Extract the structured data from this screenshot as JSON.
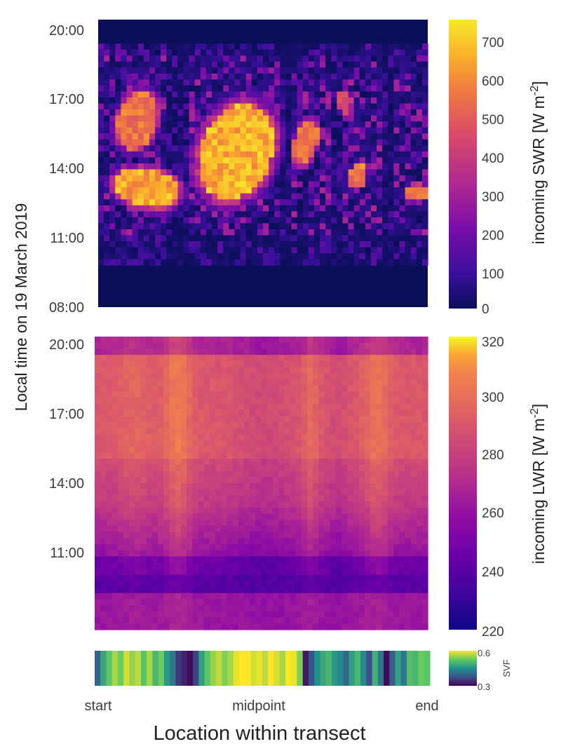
{
  "chart_data": [
    {
      "type": "heatmap",
      "xlabel": "Location within transect",
      "ylabel": "Local time on 19 March 2019",
      "x_tick_labels": [
        "start",
        "midpoint",
        "end"
      ],
      "y_tick_labels": [
        "20:00",
        "17:00",
        "14:00",
        "11:00",
        "08:00"
      ],
      "ylim": [
        "08:00",
        "20:00"
      ],
      "colorbar": {
        "label": "incoming SWR [W m",
        "label_superscript": "-2",
        "label_suffix": "]",
        "range": [
          0,
          750
        ],
        "ticks": [
          0,
          100,
          200,
          300,
          400,
          500,
          600,
          700
        ],
        "tick_labels": [
          "0",
          "100",
          "200",
          "300",
          "400",
          "500",
          "600",
          "700"
        ],
        "colormap": "plasma"
      },
      "zero_periods": [
        "08:00-10:00",
        "19:00-20:00"
      ],
      "bright_patches_w_m2": [
        {
          "location": "start",
          "time": "12:00-13:30",
          "value": 720
        },
        {
          "location": "start",
          "time": "15:00-17:00",
          "value": 650
        },
        {
          "location": "midpoint",
          "time": "12:30-17:00",
          "value": 740
        },
        {
          "location": "right of midpoint",
          "time": "14:00-16:00",
          "value": 650
        },
        {
          "location": "end",
          "time": "12:30-13:30",
          "value": 680
        }
      ]
    },
    {
      "type": "heatmap",
      "xlabel": "Location within transect",
      "ylabel": "Local time on 19 March 2019",
      "y_tick_labels": [
        "20:00",
        "17:00",
        "14:00",
        "11:00"
      ],
      "colorbar": {
        "label": "incoming LWR [W m",
        "label_superscript": "-2",
        "label_suffix": "]",
        "range": [
          220,
          320
        ],
        "ticks": [
          220,
          240,
          260,
          280,
          300,
          320
        ],
        "tick_labels": [
          "220",
          "240",
          "260",
          "280",
          "300",
          "320"
        ],
        "colormap": "plasma"
      },
      "typical_values_w_m2": {
        "afternoon_max": 305,
        "morning_min": 240
      }
    },
    {
      "type": "heatmap",
      "colorbar": {
        "label": "SVF",
        "range": [
          0.3,
          0.6
        ],
        "ticks": [
          0.3,
          0.6
        ],
        "tick_labels": [
          "0.3",
          "0.6"
        ],
        "colormap": "viridis"
      },
      "svf_values": [
        0.4,
        0.48,
        0.52,
        0.56,
        0.53,
        0.58,
        0.55,
        0.57,
        0.52,
        0.56,
        0.5,
        0.53,
        0.46,
        0.42,
        0.35,
        0.33,
        0.31,
        0.36,
        0.47,
        0.52,
        0.55,
        0.57,
        0.54,
        0.56,
        0.59,
        0.6,
        0.6,
        0.58,
        0.59,
        0.57,
        0.6,
        0.58,
        0.56,
        0.6,
        0.59,
        0.54,
        0.32,
        0.38,
        0.45,
        0.48,
        0.5,
        0.46,
        0.44,
        0.4,
        0.47,
        0.5,
        0.44,
        0.37,
        0.49,
        0.42,
        0.31,
        0.39,
        0.47,
        0.42,
        0.51,
        0.5,
        0.53,
        0.52
      ]
    }
  ]
}
